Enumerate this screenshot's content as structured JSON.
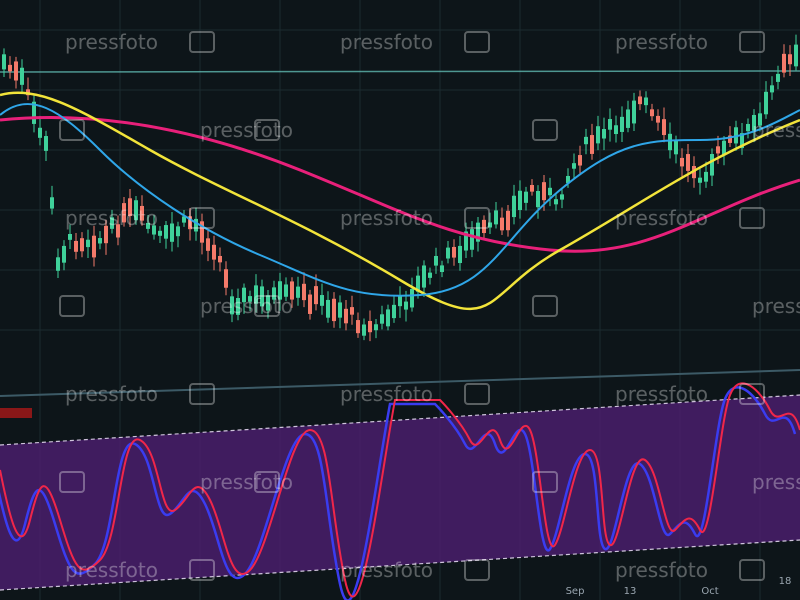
{
  "watermark": "pressfoto",
  "x_axis": {
    "labels": [
      "Sep",
      "13",
      "Oct",
      "18"
    ]
  }
}
